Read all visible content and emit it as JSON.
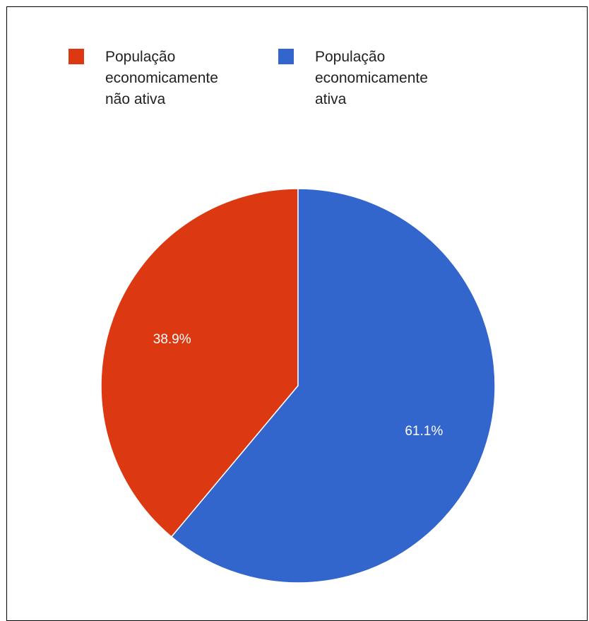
{
  "chart_data": {
    "type": "pie",
    "title": "",
    "slices": [
      {
        "label": "População\neconomicamente\nnão ativa",
        "value": 38.9,
        "display": "38.9%",
        "color": "#dc3912"
      },
      {
        "label": "População\neconomicamente\nativa",
        "value": 61.1,
        "display": "61.1%",
        "color": "#3366cc"
      }
    ],
    "legend_position": "top",
    "start_angle": "12 o'clock",
    "direction": "counterclockwise for first slice"
  }
}
